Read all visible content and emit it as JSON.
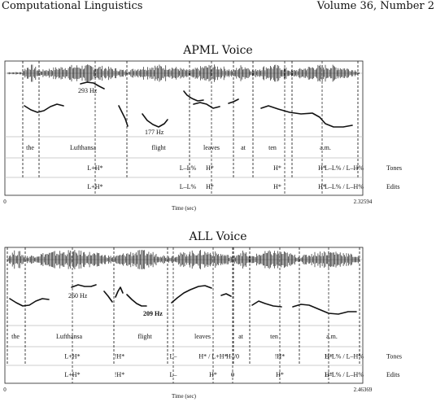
{
  "header": {
    "left": "Computational Linguistics",
    "right": "Volume 36, Number 2"
  },
  "panels": [
    {
      "title": "APML Voice",
      "pitch_labels": [
        {
          "text": "293 Hz",
          "bold": false
        },
        {
          "text": "177 Hz",
          "bold": false
        }
      ],
      "words": [
        "the",
        "Lufthansa",
        "flight",
        "leaves",
        "at",
        "ten",
        "a.m."
      ],
      "tiers": [
        {
          "name": "Tones",
          "labels": [
            "L+H*",
            "L–L%",
            "H*",
            "H*",
            "H*",
            "L–L% / L–H%"
          ]
        },
        {
          "name": "Edits",
          "labels": [
            "L+H*",
            "L–L%",
            "H*",
            "H*",
            "H*",
            "L–L% / L–H%"
          ]
        }
      ],
      "axis": {
        "start": "0",
        "end": "2.32594",
        "label": "Time (sec)"
      }
    },
    {
      "title": "ALL Voice",
      "pitch_labels": [
        {
          "text": "260 Hz",
          "bold": false
        },
        {
          "text": "209 Hz",
          "bold": true
        }
      ],
      "words": [
        "the",
        "Lufthansa",
        "flight",
        "leaves",
        "at",
        "ten",
        "a.m."
      ],
      "tiers": [
        {
          "name": "Tones",
          "labels": [
            "L+H*",
            "!H*",
            "L–",
            "H* / L+H*",
            "H–/0",
            "!H*",
            "H*",
            "L–L% / L–H%"
          ]
        },
        {
          "name": "Edits",
          "labels": [
            "L+H*",
            "!H*",
            "L–",
            "H*",
            "0",
            "H*",
            "H*",
            "L–L% / L–H%"
          ]
        }
      ],
      "axis": {
        "start": "0",
        "end": "2.46369",
        "label": "Time (sec)"
      }
    }
  ]
}
